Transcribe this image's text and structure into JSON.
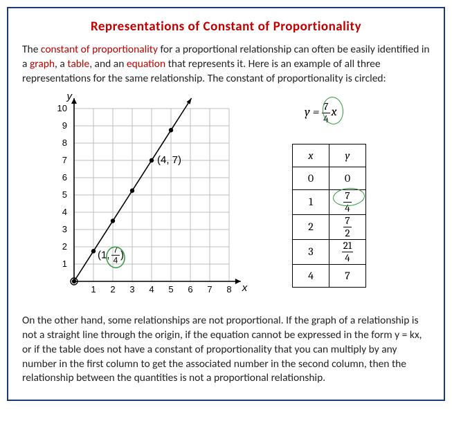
{
  "title": "Representations of Constant of Proportionality",
  "intro": {
    "p1_a": "The ",
    "p1_hl1": "constant of proportionality",
    "p1_b": " for a proportional relationship can often be easily identified in a ",
    "p1_hl2": "graph",
    "p1_c": ", a ",
    "p1_hl3": "table",
    "p1_d": ", and an ",
    "p1_hl4": "equation",
    "p1_e": " that represents it. Here is an example of all three representations for the same relationship. The constant of proportionality is circled:"
  },
  "graph": {
    "y_label": "y",
    "x_label": "x",
    "x_ticks": [
      "1",
      "2",
      "3",
      "4",
      "5",
      "6",
      "7",
      "8"
    ],
    "y_ticks": [
      "1",
      "2",
      "3",
      "4",
      "5",
      "6",
      "7",
      "8",
      "9",
      "10"
    ],
    "xlim": [
      0,
      8.6
    ],
    "ylim": [
      0,
      10.6
    ],
    "grid_step": 1,
    "grid_color": "#bdbdbd",
    "axis_color": "#000000",
    "background_color": "#ffffff",
    "line_color": "#000000",
    "line_width": 1.6,
    "points": [
      {
        "x": 0,
        "y": 0
      },
      {
        "x": 1,
        "y": 1.75
      },
      {
        "x": 2,
        "y": 3.5
      },
      {
        "x": 3,
        "y": 5.25
      },
      {
        "x": 4,
        "y": 7
      },
      {
        "x": 5,
        "y": 8.75
      }
    ],
    "marker_radius": 3.2,
    "marker_fill": "#000000",
    "label_47": "(4, 7)",
    "label_1_frac": {
      "prefix": "(1, ",
      "num": "7",
      "den": "4",
      "suffix": ")"
    },
    "circle_stroke": "#2e9a3e"
  },
  "equation": {
    "lhs": "y = ",
    "frac_num": "7",
    "frac_den": "4",
    "rhs": "x",
    "circle_stroke": "#2e9a3e"
  },
  "table": {
    "head_x": "x",
    "head_y": "y",
    "rows": [
      {
        "x": "0",
        "y_plain": "0"
      },
      {
        "x": "1",
        "y_frac": {
          "num": "7",
          "den": "4"
        },
        "circled": true
      },
      {
        "x": "2",
        "y_frac": {
          "num": "7",
          "den": "2"
        }
      },
      {
        "x": "3",
        "y_frac": {
          "num": "21",
          "den": "4"
        }
      },
      {
        "x": "4",
        "y_plain": "7"
      }
    ],
    "border_color": "#000000",
    "circle_stroke": "#2e9a3e"
  },
  "outro": "On the other hand, some relationships are not proportional. If the graph of a relationship is not a straight line through the origin, if the equation cannot be expressed in the form y = kx, or if the table does not have a constant of proportionality that you can multiply by any number in the first column to get the associated number in the second column, then the relationship between the quantities is not a proportional relationship."
}
